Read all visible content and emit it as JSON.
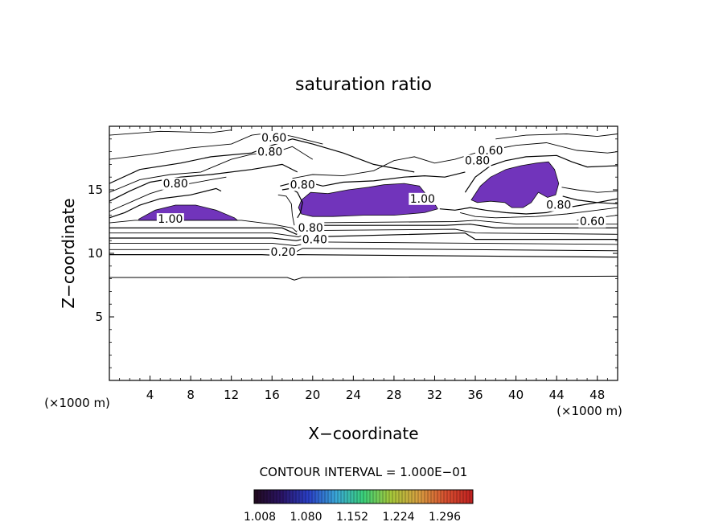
{
  "chart_data": {
    "type": "contour",
    "title": "saturation ratio",
    "xlabel": "X−coordinate",
    "ylabel": "Z−coordinate",
    "x_unit_left": "(×1000 m)",
    "x_unit_right": "(×1000 m)",
    "xlim": [
      0,
      50
    ],
    "ylim": [
      0,
      20
    ],
    "x_ticks": [
      4,
      8,
      12,
      16,
      20,
      24,
      28,
      32,
      36,
      40,
      44,
      48
    ],
    "y_ticks": [
      5,
      10,
      15
    ],
    "contour_interval_text": "CONTOUR INTERVAL = 1.000E−01",
    "contour_labels": [
      {
        "text": "0.60",
        "x": 16.2,
        "y": 18.8
      },
      {
        "text": "0.80",
        "x": 15.8,
        "y": 17.7
      },
      {
        "text": "0.80",
        "x": 6.5,
        "y": 15.2
      },
      {
        "text": "1.00",
        "x": 6.0,
        "y": 12.4
      },
      {
        "text": "0.80",
        "x": 19.0,
        "y": 15.1
      },
      {
        "text": "1.00",
        "x": 30.8,
        "y": 14.0
      },
      {
        "text": "0.60",
        "x": 37.5,
        "y": 17.8
      },
      {
        "text": "0.80",
        "x": 36.2,
        "y": 17.0
      },
      {
        "text": "0.80",
        "x": 44.2,
        "y": 13.5
      },
      {
        "text": "0.60",
        "x": 47.5,
        "y": 12.2
      },
      {
        "text": "0.80",
        "x": 19.8,
        "y": 11.7
      },
      {
        "text": "0.40",
        "x": 20.2,
        "y": 10.8
      },
      {
        "text": "0.20",
        "x": 17.1,
        "y": 9.8
      }
    ],
    "colorbar": {
      "labels": [
        "1.008",
        "1.080",
        "1.152",
        "1.224",
        "1.296"
      ],
      "colors": [
        "#220a1e",
        "#2a1466",
        "#2a40c8",
        "#3aa8d8",
        "#3ad07a",
        "#a6c83a",
        "#d8a040",
        "#d85030",
        "#c02020"
      ]
    },
    "fill_color": "#6a2ab8",
    "grid": false
  }
}
